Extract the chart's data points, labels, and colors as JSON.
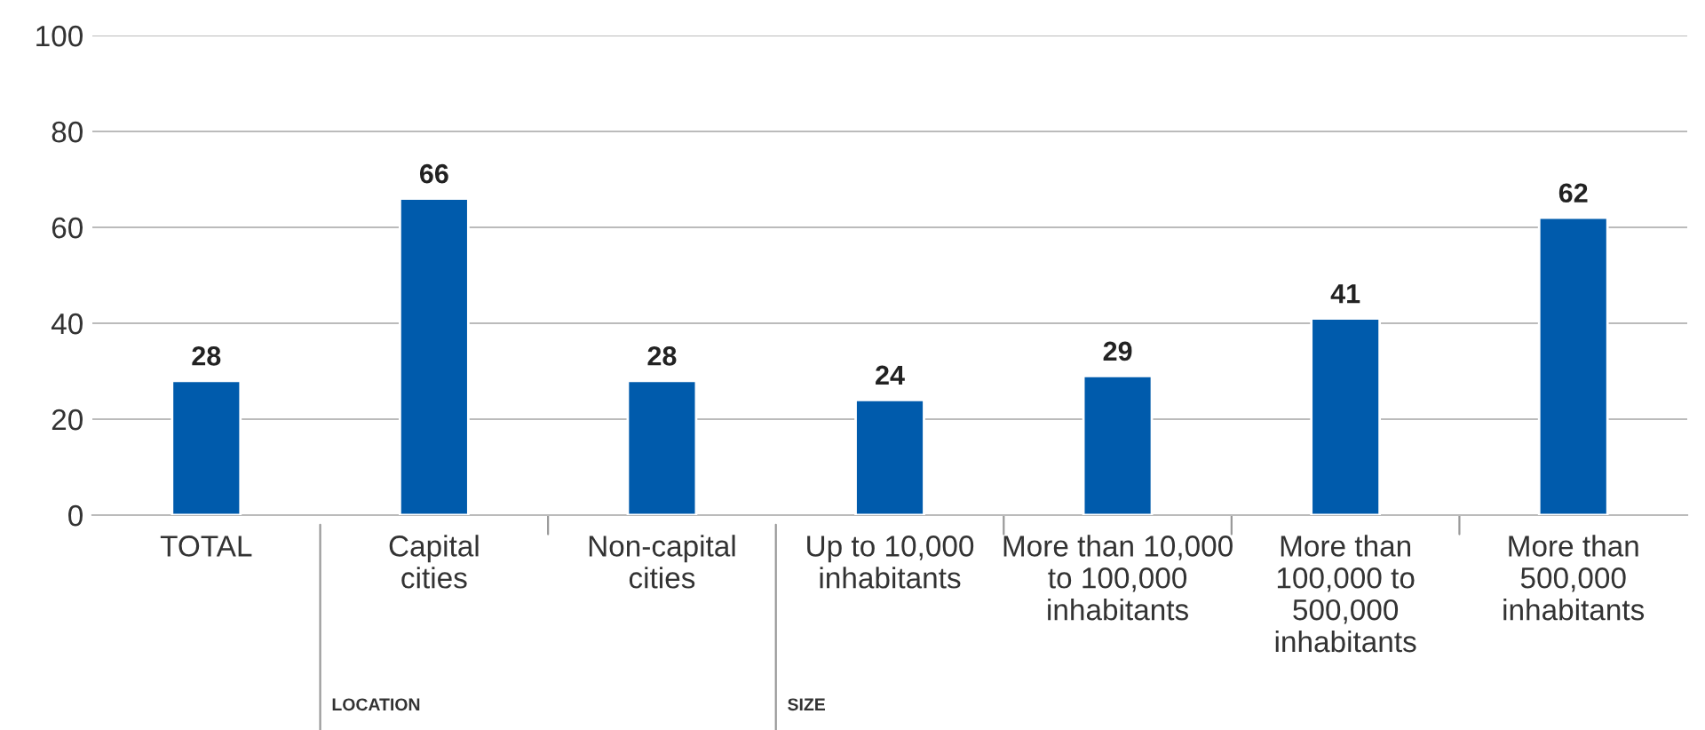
{
  "chart_data": {
    "type": "bar",
    "categories": [
      "TOTAL",
      "Capital\ncities",
      "Non-capital\ncities",
      "Up to 10,000\ninhabitants",
      "More than 10,000\nto 100,000\ninhabitants",
      "More than\n100,000 to\n500,000\ninhabitants",
      "More than\n500,000\ninhabitants"
    ],
    "values": [
      28,
      66,
      28,
      24,
      29,
      41,
      62
    ],
    "color": "#005bac",
    "ylim": [
      0,
      100
    ],
    "yticks": [
      0,
      20,
      40,
      60,
      80,
      100
    ],
    "grid": "y",
    "data_labels": true,
    "annotations": [
      "LOCATION",
      "SIZE"
    ]
  }
}
